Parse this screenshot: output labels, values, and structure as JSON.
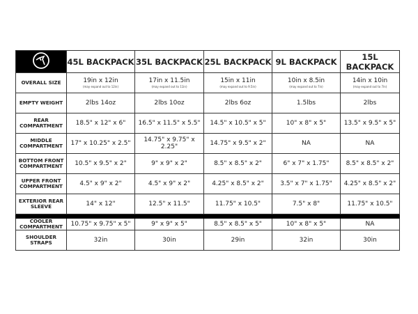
{
  "icon": "wolf-head-logo-icon",
  "headers": [
    "45L BACKPACK",
    "35L BACKPACK",
    "25L BACKPACK",
    "9L BACKPACK",
    "15L BACKPACK"
  ],
  "rows": [
    {
      "label": "OVERALL SIZE",
      "values": [
        "19in x 12in",
        "17in x 11.5in",
        "15in x 11in",
        "10in x 8.5in",
        "14in x 10in"
      ],
      "notes": [
        "(may expand out to 12in)",
        "(may expand out to 11in)",
        "(may expand out to 9.5in)",
        "(may expand out to 7in)",
        "(may expand out to 7in)"
      ]
    },
    {
      "label": "EMPTY WEIGHT",
      "values": [
        "2lbs 14oz",
        "2lbs 10oz",
        "2lbs 6oz",
        "1.5lbs",
        "2lbs"
      ]
    },
    {
      "label": "REAR COMPARTMENT",
      "values": [
        "18.5\" x 12\" x 6\"",
        "16.5\" x 11.5\" x 5.5\"",
        "14.5\" x 10.5\" x 5\"",
        "10\" x 8\" x 5\"",
        "13.5\" x 9.5\" x 5\""
      ]
    },
    {
      "label": "MIDDLE COMPARTMENT",
      "values": [
        "17\" x 10.25\" x 2.5\"",
        "14.75\" x 9.75\" x 2.25\"",
        "14.75\" x 9.5\" x 2\"",
        "NA",
        "NA"
      ]
    },
    {
      "label": "BOTTOM FRONT COMPARTMENT",
      "values": [
        "10.5\" x 9.5\" x 2\"",
        "9\" x 9\" x 2\"",
        "8.5\" x 8.5\" x 2\"",
        "6\" x 7\" x 1.75\"",
        "8.5\" x 8.5\" x 2\""
      ]
    },
    {
      "label": "UPPER FRONT COMPARTMENT",
      "values": [
        "4.5\" x 9\" x 2\"",
        "4.5\" x 9\" x 2\"",
        "4.25\" x 8.5\" x 2\"",
        "3.5\" x 7\" x 1.75\"",
        "4.25\" x 8.5\" x 2\""
      ]
    },
    {
      "label": "EXTERIOR REAR SLEEVE",
      "values": [
        "14\" x 12\"",
        "12.5\" x 11.5\"",
        "11.75\" x 10.5\"",
        "7.5\" x 8\"",
        "11.75\" x 10.5\""
      ]
    },
    {
      "label": "COOLER COMPARTMENT",
      "values": [
        "10.75\" x 9.75\" x 5\"",
        "9\" x 9\" x 5\"",
        "8.5\" x 8.5\" x 5\"",
        "10\" x 8\" x 5\"",
        "NA"
      ]
    },
    {
      "label": "SHOULDER STRAPS",
      "values": [
        "32in",
        "30in",
        "29in",
        "32in",
        "30in"
      ]
    }
  ]
}
